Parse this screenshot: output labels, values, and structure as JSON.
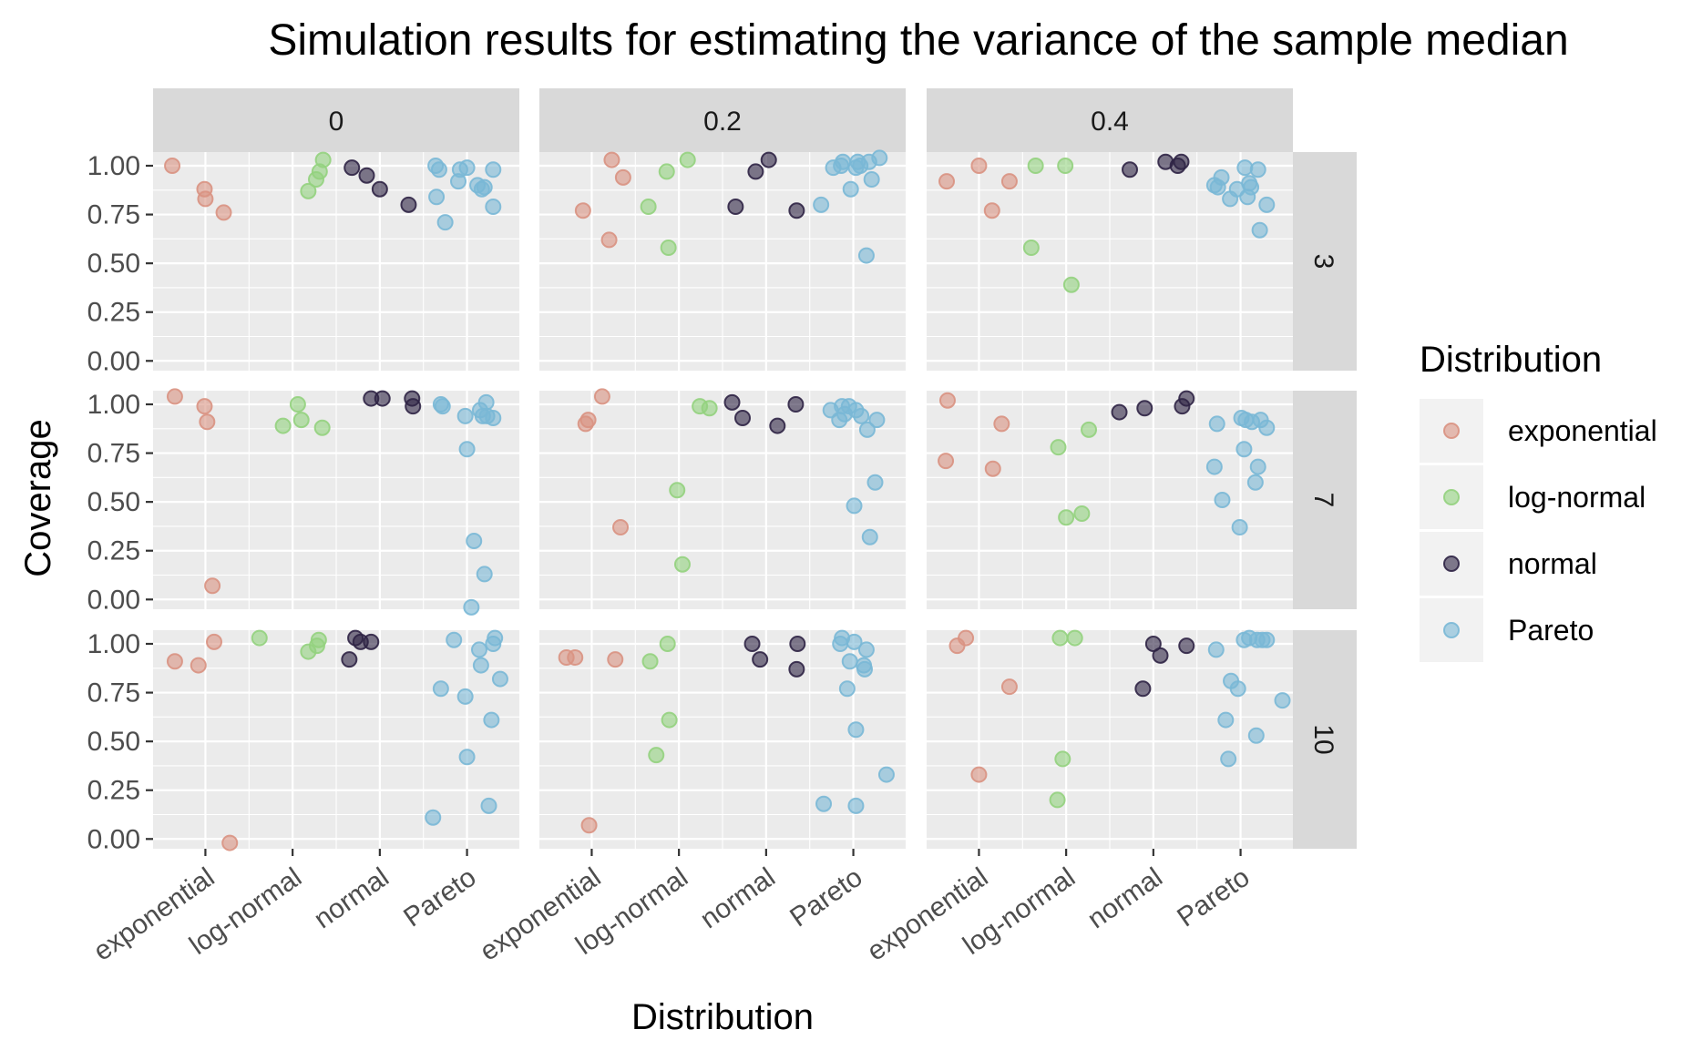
{
  "chart_data": {
    "type": "scatter",
    "title": "Simulation results for estimating the variance of the sample median",
    "xlabel": "Distribution",
    "ylabel": "Coverage",
    "categories": [
      "exponential",
      "log-normal",
      "normal",
      "Pareto"
    ],
    "ylim": [
      -0.05,
      1.07
    ],
    "yticks": [
      0.0,
      0.25,
      0.5,
      0.75,
      1.0
    ],
    "ytick_labels": [
      "0.00",
      "0.25",
      "0.50",
      "0.75",
      "1.00"
    ],
    "col_facets": [
      "0",
      "0.2",
      "0.4"
    ],
    "row_facets": [
      "3",
      "7",
      "10"
    ],
    "grid": true,
    "legend": {
      "title": "Distribution",
      "position": "right",
      "entries": [
        {
          "name": "exponential",
          "color": "#d99282"
        },
        {
          "name": "log-normal",
          "color": "#93d27e"
        },
        {
          "name": "normal",
          "color": "#2f2445"
        },
        {
          "name": "Pareto",
          "color": "#7ab8d6"
        }
      ]
    },
    "panels": [
      {
        "col": "0",
        "row": "3",
        "points": {
          "exponential": [
            [
              0.62,
              1.0
            ],
            [
              0.99,
              0.88
            ],
            [
              1.0,
              0.83
            ],
            [
              1.21,
              0.76
            ]
          ],
          "log-normal": [
            [
              2.18,
              0.87
            ],
            [
              2.27,
              0.93
            ],
            [
              2.31,
              0.97
            ],
            [
              2.35,
              1.03
            ]
          ],
          "normal": [
            [
              2.68,
              0.99
            ],
            [
              2.85,
              0.95
            ],
            [
              3.0,
              0.88
            ],
            [
              3.33,
              0.8
            ]
          ],
          "Pareto": [
            [
              3.64,
              1.0
            ],
            [
              3.65,
              0.84
            ],
            [
              3.68,
              0.98
            ],
            [
              3.75,
              0.71
            ],
            [
              3.9,
              0.92
            ],
            [
              3.92,
              0.98
            ],
            [
              4.0,
              0.99
            ],
            [
              4.12,
              0.9
            ],
            [
              4.17,
              0.88
            ],
            [
              4.2,
              0.89
            ],
            [
              4.3,
              0.98
            ],
            [
              4.3,
              0.79
            ]
          ]
        }
      },
      {
        "col": "0.2",
        "row": "3",
        "points": {
          "exponential": [
            [
              0.9,
              0.77
            ],
            [
              1.2,
              0.62
            ],
            [
              1.23,
              1.03
            ],
            [
              1.36,
              0.94
            ]
          ],
          "log-normal": [
            [
              1.65,
              0.79
            ],
            [
              1.86,
              0.97
            ],
            [
              1.88,
              0.58
            ],
            [
              2.1,
              1.03
            ]
          ],
          "normal": [
            [
              2.65,
              0.79
            ],
            [
              2.88,
              0.97
            ],
            [
              3.03,
              1.03
            ],
            [
              3.35,
              0.77
            ]
          ],
          "Pareto": [
            [
              3.63,
              0.8
            ],
            [
              3.77,
              0.99
            ],
            [
              3.86,
              1.0
            ],
            [
              3.88,
              1.02
            ],
            [
              3.97,
              0.88
            ],
            [
              4.03,
              0.99
            ],
            [
              4.05,
              1.02
            ],
            [
              4.08,
              1.0
            ],
            [
              4.15,
              0.54
            ],
            [
              4.18,
              1.02
            ],
            [
              4.21,
              0.93
            ],
            [
              4.3,
              1.04
            ]
          ]
        }
      },
      {
        "col": "0.4",
        "row": "3",
        "points": {
          "exponential": [
            [
              0.63,
              0.92
            ],
            [
              1.0,
              1.0
            ],
            [
              1.15,
              0.77
            ],
            [
              1.35,
              0.92
            ]
          ],
          "log-normal": [
            [
              1.6,
              0.58
            ],
            [
              1.65,
              1.0
            ],
            [
              1.99,
              1.0
            ],
            [
              2.06,
              0.39
            ]
          ],
          "normal": [
            [
              2.73,
              0.98
            ],
            [
              3.14,
              1.02
            ],
            [
              3.28,
              1.0
            ],
            [
              3.32,
              1.02
            ]
          ],
          "Pareto": [
            [
              3.7,
              0.9
            ],
            [
              3.74,
              0.89
            ],
            [
              3.78,
              0.94
            ],
            [
              3.88,
              0.83
            ],
            [
              3.96,
              0.88
            ],
            [
              4.05,
              0.99
            ],
            [
              4.08,
              0.84
            ],
            [
              4.1,
              0.91
            ],
            [
              4.12,
              0.89
            ],
            [
              4.2,
              0.98
            ],
            [
              4.22,
              0.67
            ],
            [
              4.3,
              0.8
            ]
          ]
        }
      },
      {
        "col": "0",
        "row": "7",
        "points": {
          "exponential": [
            [
              0.65,
              1.04
            ],
            [
              0.99,
              0.99
            ],
            [
              1.02,
              0.91
            ],
            [
              1.08,
              0.07
            ]
          ],
          "log-normal": [
            [
              1.89,
              0.89
            ],
            [
              2.06,
              1.0
            ],
            [
              2.1,
              0.92
            ],
            [
              2.34,
              0.88
            ]
          ],
          "normal": [
            [
              2.9,
              1.03
            ],
            [
              3.03,
              1.03
            ],
            [
              3.37,
              1.03
            ],
            [
              3.38,
              0.99
            ]
          ],
          "Pareto": [
            [
              3.7,
              1.0
            ],
            [
              3.72,
              0.99
            ],
            [
              3.98,
              0.94
            ],
            [
              4.0,
              0.77
            ],
            [
              4.05,
              -0.04
            ],
            [
              4.08,
              0.3
            ],
            [
              4.15,
              0.97
            ],
            [
              4.18,
              0.94
            ],
            [
              4.2,
              0.13
            ],
            [
              4.22,
              1.01
            ],
            [
              4.23,
              0.94
            ],
            [
              4.3,
              0.93
            ]
          ]
        }
      },
      {
        "col": "0.2",
        "row": "7",
        "points": {
          "exponential": [
            [
              0.93,
              0.9
            ],
            [
              0.96,
              0.92
            ],
            [
              1.12,
              1.04
            ],
            [
              1.33,
              0.37
            ]
          ],
          "log-normal": [
            [
              2.24,
              0.99
            ],
            [
              2.35,
              0.98
            ],
            [
              1.98,
              0.56
            ],
            [
              2.04,
              0.18
            ]
          ],
          "normal": [
            [
              2.61,
              1.01
            ],
            [
              2.73,
              0.93
            ],
            [
              3.13,
              0.89
            ],
            [
              3.34,
              1.0
            ]
          ],
          "Pareto": [
            [
              3.74,
              0.97
            ],
            [
              3.84,
              0.92
            ],
            [
              3.87,
              0.99
            ],
            [
              3.9,
              0.95
            ],
            [
              3.95,
              0.99
            ],
            [
              4.01,
              0.48
            ],
            [
              4.03,
              0.97
            ],
            [
              4.09,
              0.94
            ],
            [
              4.16,
              0.87
            ],
            [
              4.19,
              0.32
            ],
            [
              4.25,
              0.6
            ],
            [
              4.27,
              0.92
            ]
          ]
        }
      },
      {
        "col": "0.4",
        "row": "7",
        "points": {
          "exponential": [
            [
              0.64,
              1.02
            ],
            [
              0.62,
              0.71
            ],
            [
              1.16,
              0.67
            ],
            [
              1.26,
              0.9
            ]
          ],
          "log-normal": [
            [
              1.91,
              0.78
            ],
            [
              2.0,
              0.42
            ],
            [
              2.18,
              0.44
            ],
            [
              2.26,
              0.87
            ]
          ],
          "normal": [
            [
              2.61,
              0.96
            ],
            [
              2.9,
              0.98
            ],
            [
              3.33,
              0.99
            ],
            [
              3.38,
              1.03
            ]
          ],
          "Pareto": [
            [
              3.7,
              0.68
            ],
            [
              3.73,
              0.9
            ],
            [
              3.79,
              0.51
            ],
            [
              3.99,
              0.37
            ],
            [
              4.01,
              0.93
            ],
            [
              4.04,
              0.77
            ],
            [
              4.06,
              0.92
            ],
            [
              4.13,
              0.91
            ],
            [
              4.17,
              0.6
            ],
            [
              4.2,
              0.68
            ],
            [
              4.23,
              0.92
            ],
            [
              4.3,
              0.88
            ]
          ]
        }
      },
      {
        "col": "0",
        "row": "10",
        "points": {
          "exponential": [
            [
              0.65,
              0.91
            ],
            [
              0.92,
              0.89
            ],
            [
              1.1,
              1.01
            ],
            [
              1.28,
              -0.02
            ]
          ],
          "log-normal": [
            [
              1.62,
              1.03
            ],
            [
              2.18,
              0.96
            ],
            [
              2.28,
              0.99
            ],
            [
              2.3,
              1.02
            ]
          ],
          "normal": [
            [
              2.65,
              0.92
            ],
            [
              2.72,
              1.03
            ],
            [
              2.78,
              1.01
            ],
            [
              2.9,
              1.01
            ]
          ],
          "Pareto": [
            [
              3.61,
              0.11
            ],
            [
              3.7,
              0.77
            ],
            [
              3.85,
              1.02
            ],
            [
              3.98,
              0.73
            ],
            [
              4.0,
              0.42
            ],
            [
              4.14,
              0.97
            ],
            [
              4.16,
              0.89
            ],
            [
              4.25,
              0.17
            ],
            [
              4.28,
              0.61
            ],
            [
              4.3,
              1.0
            ],
            [
              4.32,
              1.03
            ],
            [
              4.38,
              0.82
            ]
          ]
        }
      },
      {
        "col": "0.2",
        "row": "10",
        "points": {
          "exponential": [
            [
              0.71,
              0.93
            ],
            [
              0.81,
              0.93
            ],
            [
              1.27,
              0.92
            ],
            [
              0.97,
              0.07
            ]
          ],
          "log-normal": [
            [
              1.67,
              0.91
            ],
            [
              1.74,
              0.43
            ],
            [
              1.87,
              1.0
            ],
            [
              1.89,
              0.61
            ]
          ],
          "normal": [
            [
              2.84,
              1.0
            ],
            [
              2.93,
              0.92
            ],
            [
              3.36,
              1.0
            ],
            [
              3.35,
              0.87
            ]
          ],
          "Pareto": [
            [
              3.66,
              0.18
            ],
            [
              3.85,
              1.0
            ],
            [
              3.87,
              1.03
            ],
            [
              3.93,
              0.77
            ],
            [
              3.96,
              0.91
            ],
            [
              4.01,
              1.01
            ],
            [
              4.03,
              0.56
            ],
            [
              4.03,
              0.17
            ],
            [
              4.12,
              0.89
            ],
            [
              4.13,
              0.87
            ],
            [
              4.15,
              0.97
            ],
            [
              4.38,
              0.33
            ]
          ]
        }
      },
      {
        "col": "0.4",
        "row": "10",
        "points": {
          "exponential": [
            [
              0.75,
              0.99
            ],
            [
              0.85,
              1.03
            ],
            [
              1.35,
              0.78
            ],
            [
              1.0,
              0.33
            ]
          ],
          "log-normal": [
            [
              1.9,
              0.2
            ],
            [
              1.93,
              1.03
            ],
            [
              1.96,
              0.41
            ],
            [
              2.1,
              1.03
            ]
          ],
          "normal": [
            [
              2.88,
              0.77
            ],
            [
              3.0,
              1.0
            ],
            [
              3.08,
              0.94
            ],
            [
              3.38,
              0.99
            ]
          ],
          "Pareto": [
            [
              3.72,
              0.97
            ],
            [
              3.83,
              0.61
            ],
            [
              3.86,
              0.41
            ],
            [
              3.89,
              0.81
            ],
            [
              3.97,
              0.77
            ],
            [
              4.04,
              1.02
            ],
            [
              4.1,
              1.03
            ],
            [
              4.18,
              0.53
            ],
            [
              4.19,
              1.02
            ],
            [
              4.25,
              1.02
            ],
            [
              4.3,
              1.02
            ],
            [
              4.48,
              0.71
            ]
          ]
        }
      }
    ]
  }
}
